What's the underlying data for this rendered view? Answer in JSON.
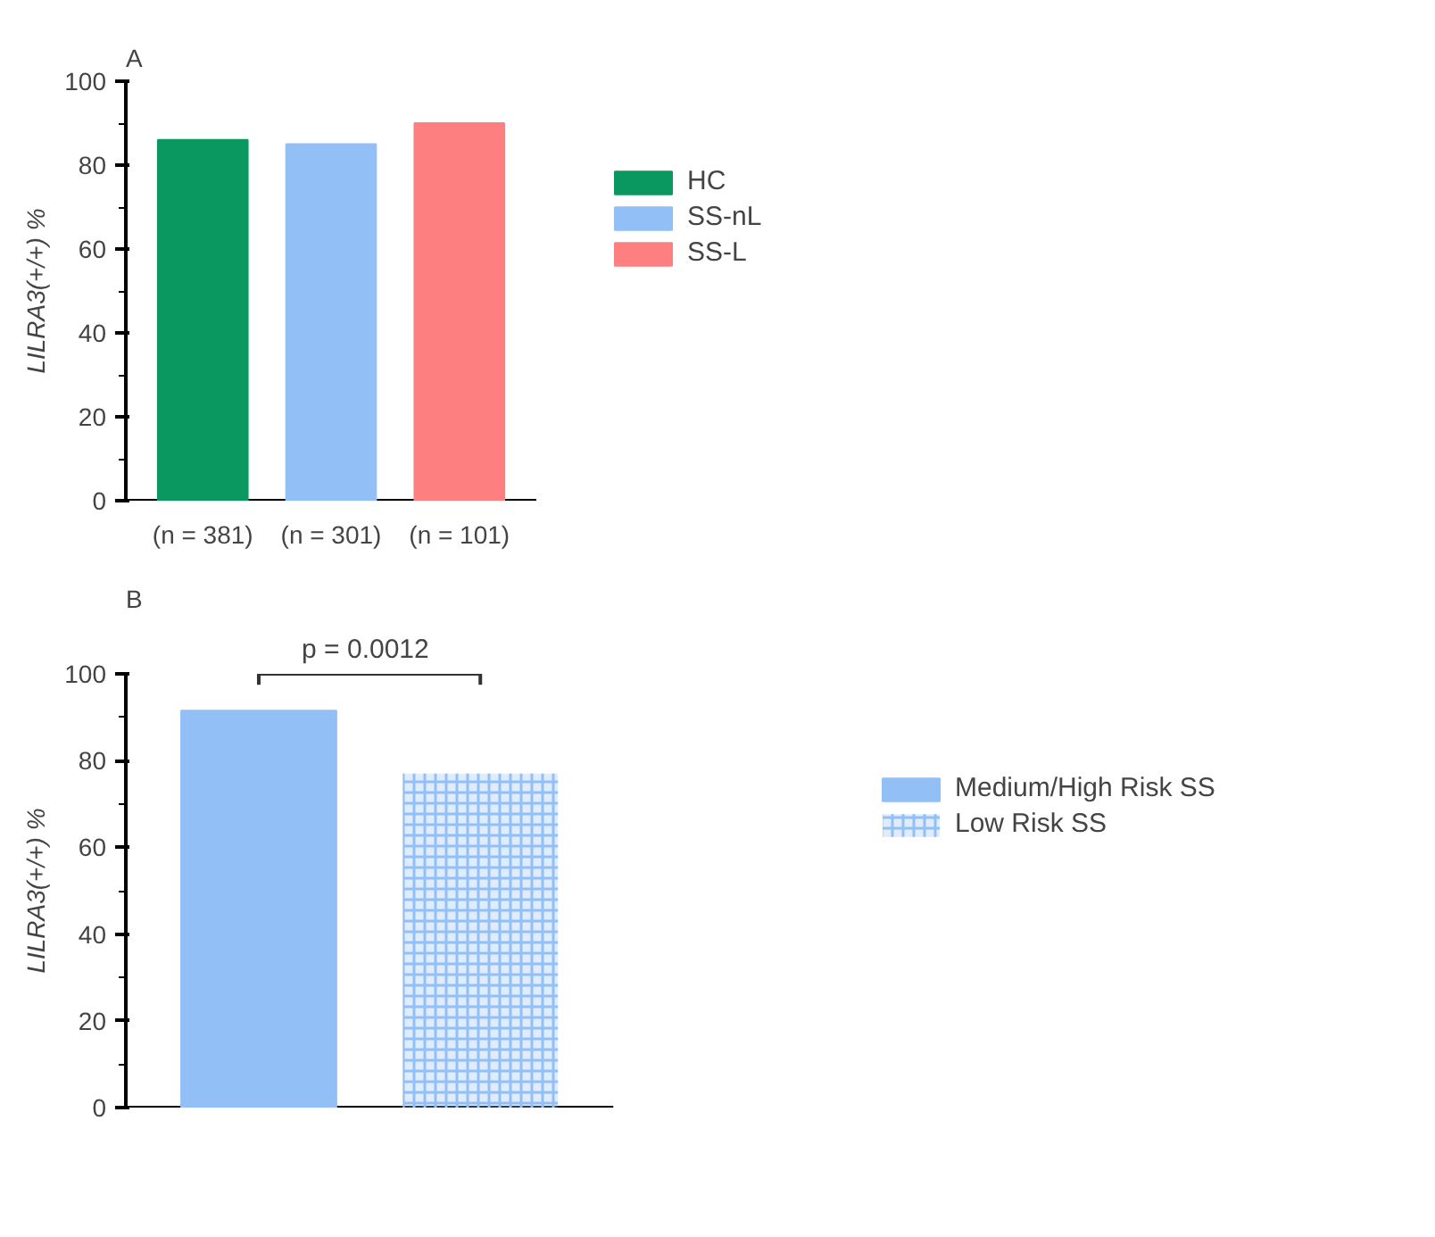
{
  "chart_data": [
    {
      "type": "bar",
      "title": "A",
      "ylabel": "LILRA3(+/+) %",
      "categories": [
        "(n = 381)",
        "(n = 301)",
        "(n = 101)"
      ],
      "series": [
        {
          "name": "HC",
          "color": "#0b9860",
          "values": [
            86,
            null,
            null
          ]
        },
        {
          "name": "SS-nL",
          "color": "#93bff7",
          "values": [
            null,
            85,
            null
          ]
        },
        {
          "name": "SS-L",
          "color": "#fe7f7f",
          "values": [
            null,
            null,
            90
          ]
        }
      ],
      "ylim": [
        0,
        100
      ],
      "yticks": [
        0,
        20,
        40,
        60,
        80,
        100
      ],
      "grid": false,
      "legend": "right"
    },
    {
      "type": "bar",
      "title": "B",
      "ylabel": "LILRA3(+/+) %",
      "categories": [
        null,
        null
      ],
      "series": [
        {
          "name": "Medium/High Risk SS",
          "color": "#93bff7",
          "values": [
            91.5,
            null
          ]
        },
        {
          "name": "Low Risk SS",
          "color": "#93bff7",
          "values": [
            null,
            77
          ],
          "line_style": "dashed"
        }
      ],
      "ylim": [
        0,
        100
      ],
      "yticks": [
        0,
        20,
        40,
        60,
        80,
        100
      ],
      "grid": false,
      "legend": "right",
      "annotations": [
        "p = 0.0012"
      ]
    }
  ]
}
